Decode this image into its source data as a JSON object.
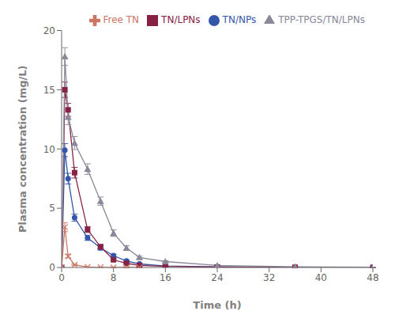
{
  "chart_data": {
    "type": "line",
    "xlabel": "Time (h)",
    "ylabel": "Plasma concentration (mg/L)",
    "xlim": [
      0,
      48
    ],
    "ylim": [
      0,
      20
    ],
    "xticks": [
      0,
      8,
      16,
      24,
      32,
      40,
      48
    ],
    "yticks": [
      0,
      5,
      10,
      15,
      20
    ],
    "grid": false,
    "legend": "upper right",
    "series": [
      {
        "name": "TN/NPs",
        "color": "#3355aa",
        "marker": "circle",
        "line_style": "solid",
        "x": [
          0,
          0.5,
          1,
          2,
          4,
          6,
          8,
          10,
          12,
          16,
          24,
          36,
          48
        ],
        "values": [
          0,
          9.9,
          7.5,
          4.2,
          2.5,
          1.65,
          1.0,
          0.55,
          0.3,
          0.12,
          0.05,
          0.02,
          0.01
        ],
        "errors": [
          0,
          0.55,
          0.45,
          0.3,
          0.22,
          0.18,
          0.12,
          0.08,
          0.06,
          0.04,
          0.02,
          0.01,
          0.005
        ]
      },
      {
        "name": "TN/LPNs",
        "color": "#882244",
        "marker": "square",
        "line_style": "solid",
        "x": [
          0,
          0.5,
          1,
          2,
          4,
          6,
          8,
          10,
          12,
          16,
          24,
          36,
          48
        ],
        "values": [
          0,
          15.0,
          13.3,
          8.0,
          3.2,
          1.75,
          0.65,
          0.35,
          0.18,
          0.09,
          0.04,
          0.015,
          0.005
        ],
        "errors": [
          0,
          0.65,
          0.55,
          0.45,
          0.25,
          0.18,
          0.09,
          0.06,
          0.05,
          0.03,
          0.02,
          0.01,
          0.005
        ]
      },
      {
        "name": "TPP-TPGS/TN/LPNs",
        "color": "#888899",
        "marker": "triangle",
        "line_style": "solid",
        "x": [
          0,
          0.5,
          1,
          2,
          4,
          6,
          8,
          10,
          12,
          16,
          24,
          36,
          48
        ],
        "values": [
          0,
          17.8,
          12.7,
          10.5,
          8.3,
          5.6,
          2.9,
          1.65,
          0.85,
          0.5,
          0.17,
          0.06,
          0.015
        ],
        "errors": [
          0,
          0.75,
          0.65,
          0.55,
          0.45,
          0.35,
          0.28,
          0.18,
          0.1,
          0.07,
          0.04,
          0.02,
          0.01
        ]
      },
      {
        "name": "Free TN",
        "color": "#cc7766",
        "marker": "x",
        "line_style": "solid",
        "x": [
          0,
          0.5,
          1,
          2,
          4,
          6,
          8,
          10,
          12
        ],
        "values": [
          0,
          3.4,
          0.95,
          0.22,
          0.04,
          0.015,
          0.005,
          0.002,
          0.001
        ],
        "errors": [
          0,
          0.38,
          0.14,
          0.04,
          0.015,
          0.008,
          0.003,
          0.001,
          0.001
        ]
      }
    ]
  }
}
